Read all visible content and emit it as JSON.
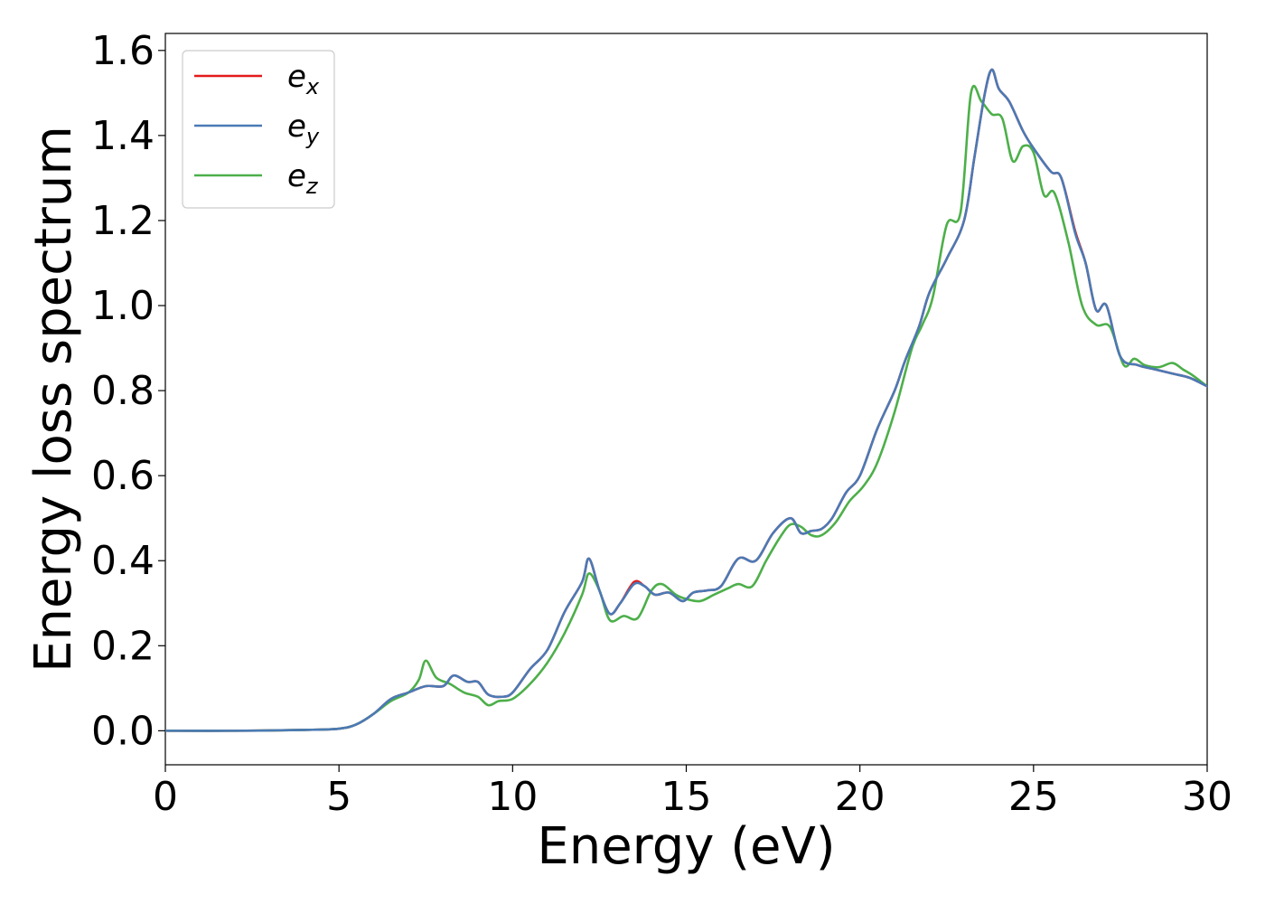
{
  "chart_data": {
    "type": "line",
    "title": "",
    "xlabel": "Energy (eV)",
    "ylabel": "Energy loss spectrum",
    "xlim": [
      0,
      30
    ],
    "ylim": [
      -0.08,
      1.64
    ],
    "xticks": [
      0,
      5,
      10,
      15,
      20,
      25,
      30
    ],
    "xtick_labels": [
      "0",
      "5",
      "10",
      "15",
      "20",
      "25",
      "30"
    ],
    "yticks": [
      0.0,
      0.2,
      0.4,
      0.6,
      0.8,
      1.0,
      1.2,
      1.4,
      1.6
    ],
    "ytick_labels": [
      "0.0",
      "0.2",
      "0.4",
      "0.6",
      "0.8",
      "1.0",
      "1.2",
      "1.4",
      "1.6"
    ],
    "grid": false,
    "legend_position": "top-left",
    "series": [
      {
        "name": "e",
        "subscript": "x",
        "color": "#e41a1c",
        "x": [
          0,
          2,
          4,
          5,
          5.5,
          6,
          6.5,
          7,
          7.5,
          8,
          8.3,
          8.7,
          9,
          9.3,
          9.7,
          10,
          10.5,
          11,
          11.5,
          12,
          12.2,
          12.5,
          12.8,
          13.1,
          13.5,
          13.8,
          14.1,
          14.5,
          14.9,
          15.2,
          15.6,
          16,
          16.5,
          17,
          17.5,
          18,
          18.3,
          18.6,
          18.9,
          19.2,
          19.6,
          20,
          20.5,
          21,
          21.3,
          21.7,
          22,
          22.5,
          23,
          23.3,
          23.6,
          23.8,
          24,
          24.3,
          24.7,
          25,
          25.5,
          25.8,
          26.2,
          26.5,
          26.8,
          27.1,
          27.5,
          28,
          28.5,
          29,
          29.5,
          30
        ],
        "y": [
          0.0,
          0.0,
          0.002,
          0.005,
          0.015,
          0.04,
          0.075,
          0.09,
          0.105,
          0.105,
          0.13,
          0.115,
          0.115,
          0.085,
          0.08,
          0.09,
          0.145,
          0.19,
          0.28,
          0.35,
          0.405,
          0.33,
          0.275,
          0.3,
          0.35,
          0.34,
          0.32,
          0.325,
          0.305,
          0.325,
          0.33,
          0.34,
          0.405,
          0.4,
          0.465,
          0.5,
          0.465,
          0.47,
          0.475,
          0.5,
          0.56,
          0.6,
          0.71,
          0.8,
          0.87,
          0.95,
          1.03,
          1.11,
          1.2,
          1.35,
          1.5,
          1.555,
          1.51,
          1.48,
          1.41,
          1.37,
          1.315,
          1.3,
          1.175,
          1.1,
          0.99,
          1.0,
          0.88,
          0.86,
          0.85,
          0.84,
          0.83,
          0.81
        ]
      },
      {
        "name": "e",
        "subscript": "y",
        "color": "#4a7ab5",
        "x": [
          0,
          2,
          4,
          5,
          5.5,
          6,
          6.5,
          7,
          7.5,
          8,
          8.3,
          8.7,
          9,
          9.3,
          9.7,
          10,
          10.5,
          11,
          11.5,
          12,
          12.2,
          12.5,
          12.8,
          13.1,
          13.5,
          13.8,
          14.1,
          14.5,
          14.9,
          15.2,
          15.6,
          16,
          16.5,
          17,
          17.5,
          18,
          18.3,
          18.6,
          18.9,
          19.2,
          19.6,
          20,
          20.5,
          21,
          21.3,
          21.7,
          22,
          22.5,
          23,
          23.3,
          23.6,
          23.8,
          24,
          24.3,
          24.7,
          25,
          25.5,
          25.8,
          26.2,
          26.5,
          26.8,
          27.1,
          27.5,
          28,
          28.5,
          29,
          29.5,
          30
        ],
        "y": [
          0.0,
          0.0,
          0.002,
          0.005,
          0.015,
          0.04,
          0.075,
          0.09,
          0.105,
          0.105,
          0.13,
          0.115,
          0.115,
          0.085,
          0.08,
          0.09,
          0.145,
          0.19,
          0.28,
          0.35,
          0.405,
          0.33,
          0.275,
          0.3,
          0.345,
          0.34,
          0.32,
          0.325,
          0.305,
          0.325,
          0.33,
          0.34,
          0.405,
          0.4,
          0.465,
          0.5,
          0.465,
          0.47,
          0.475,
          0.5,
          0.56,
          0.6,
          0.71,
          0.8,
          0.87,
          0.95,
          1.03,
          1.11,
          1.2,
          1.35,
          1.5,
          1.555,
          1.51,
          1.48,
          1.41,
          1.37,
          1.315,
          1.3,
          1.17,
          1.1,
          0.99,
          1.0,
          0.88,
          0.86,
          0.85,
          0.84,
          0.83,
          0.81
        ]
      },
      {
        "name": "e",
        "subscript": "z",
        "color": "#4daf4a",
        "x": [
          0,
          2,
          4,
          5,
          5.5,
          6,
          6.5,
          7,
          7.3,
          7.5,
          7.8,
          8.2,
          8.6,
          9,
          9.3,
          9.6,
          10,
          10.5,
          11,
          11.5,
          12,
          12.2,
          12.5,
          12.8,
          13.2,
          13.6,
          14,
          14.3,
          14.7,
          15,
          15.4,
          15.8,
          16.2,
          16.5,
          16.9,
          17.3,
          17.7,
          18,
          18.3,
          18.6,
          18.9,
          19.3,
          19.7,
          20.1,
          20.5,
          21,
          21.5,
          21.8,
          22.1,
          22.5,
          22.9,
          23.2,
          23.5,
          23.8,
          24.1,
          24.4,
          24.7,
          25,
          25.3,
          25.6,
          26,
          26.4,
          26.8,
          27.2,
          27.6,
          27.9,
          28.2,
          28.6,
          29,
          29.3,
          29.6,
          30
        ],
        "y": [
          0.0,
          0.0,
          0.002,
          0.005,
          0.015,
          0.04,
          0.07,
          0.09,
          0.12,
          0.165,
          0.125,
          0.11,
          0.09,
          0.08,
          0.06,
          0.07,
          0.075,
          0.11,
          0.16,
          0.23,
          0.32,
          0.37,
          0.33,
          0.26,
          0.27,
          0.265,
          0.33,
          0.345,
          0.32,
          0.31,
          0.305,
          0.32,
          0.335,
          0.345,
          0.34,
          0.4,
          0.455,
          0.485,
          0.48,
          0.46,
          0.46,
          0.49,
          0.54,
          0.575,
          0.63,
          0.75,
          0.9,
          0.955,
          1.02,
          1.19,
          1.22,
          1.5,
          1.48,
          1.45,
          1.44,
          1.34,
          1.375,
          1.36,
          1.26,
          1.265,
          1.15,
          1.0,
          0.955,
          0.95,
          0.86,
          0.875,
          0.86,
          0.855,
          0.865,
          0.85,
          0.835,
          0.81
        ]
      }
    ]
  }
}
